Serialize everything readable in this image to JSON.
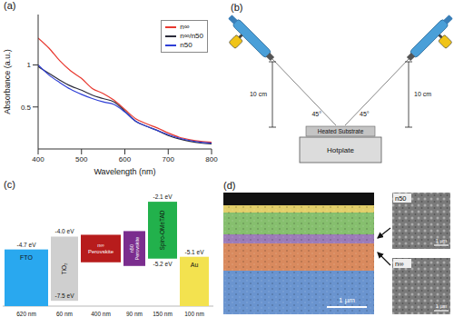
{
  "panel_labels": [
    "(a)",
    "(b)",
    "(c)",
    "(d)"
  ],
  "chart_data": {
    "type": "line",
    "x_label": "Wavelength (nm)",
    "y_label": "Absorbance (a.u.)",
    "x": [
      400,
      425,
      450,
      475,
      500,
      525,
      550,
      575,
      600,
      625,
      650,
      675,
      700,
      725,
      750,
      775,
      800
    ],
    "series": [
      {
        "name": "n∞",
        "color": "#e8382f",
        "values": [
          1.32,
          1.2,
          1.05,
          0.93,
          0.84,
          0.72,
          0.66,
          0.58,
          0.47,
          0.36,
          0.3,
          0.25,
          0.19,
          0.14,
          0.11,
          0.09,
          0.08
        ]
      },
      {
        "name": "n∞/n50",
        "color": "#2b2b3a",
        "values": [
          0.98,
          0.9,
          0.82,
          0.75,
          0.7,
          0.64,
          0.6,
          0.56,
          0.45,
          0.33,
          0.27,
          0.22,
          0.16,
          0.12,
          0.09,
          0.07,
          0.06
        ]
      },
      {
        "name": "n50",
        "color": "#2f3fd6",
        "values": [
          1.0,
          0.88,
          0.79,
          0.71,
          0.65,
          0.6,
          0.56,
          0.53,
          0.44,
          0.33,
          0.27,
          0.22,
          0.17,
          0.13,
          0.1,
          0.08,
          0.07
        ]
      }
    ],
    "xlim": [
      400,
      800
    ],
    "xticks": [
      400,
      500,
      600,
      700,
      800
    ],
    "ylim": [
      0,
      1.6
    ],
    "yticks": [
      0.5,
      1
    ],
    "legend": "upper right",
    "grid": false
  },
  "spray_setup": {
    "substrate": "Heated Substrate",
    "hotplate": "Hotplate",
    "distances": [
      "10 cm",
      "10 cm"
    ],
    "angles": [
      "45°",
      "45°"
    ]
  },
  "band_diagram": {
    "layers": [
      {
        "name": "FTO",
        "color": "#29a8ef",
        "top": {
          "value": -4.7,
          "label": "-4.7 eV"
        },
        "thickness": "620 nm"
      },
      {
        "name": "TiO₂",
        "color": "#cfcfcf",
        "top": {
          "value": -4.0,
          "label": "-4.0 eV"
        },
        "bottom": {
          "value": -7.5,
          "label": "-7.5 eV"
        },
        "thickness": "60 nm"
      },
      {
        "name": "n∞ Perovskite",
        "color": "#b71c1c",
        "top": -3.9,
        "bottom": -5.4,
        "thickness": "400 nm"
      },
      {
        "name": "n50 Perovskite",
        "color": "#7b2d8e",
        "top": -3.7,
        "bottom": -5.6,
        "thickness": "90 nm"
      },
      {
        "name": "Spiro-OMeTAD",
        "color": "#22b14c",
        "top": {
          "value": -2.1,
          "label": "-2.1 eV"
        },
        "bottom": {
          "value": -5.2,
          "label": "-5.2 eV"
        },
        "thickness": "150 nm"
      },
      {
        "name": "Au",
        "color": "#f3e24f",
        "top": {
          "value": -5.1,
          "label": "-5.1 eV"
        },
        "thickness": "100 nm"
      }
    ]
  },
  "sem": {
    "scale_bar": "1 µm",
    "insets": [
      {
        "label": "n50",
        "scale_bar": "1 µm"
      },
      {
        "label": "n∞",
        "scale_bar": "1 µm"
      }
    ]
  }
}
